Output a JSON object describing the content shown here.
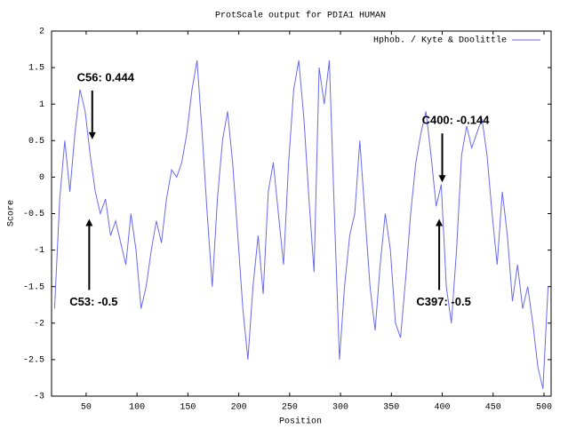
{
  "chart_data": {
    "type": "line",
    "title": "ProtScale output for PDIA1 HUMAN",
    "xlabel": "Position",
    "ylabel": "Score",
    "x": [
      19,
      24,
      29,
      34,
      39,
      44,
      49,
      54,
      59,
      64,
      69,
      74,
      79,
      84,
      89,
      94,
      99,
      104,
      109,
      114,
      119,
      124,
      129,
      134,
      139,
      144,
      149,
      154,
      159,
      164,
      169,
      174,
      179,
      184,
      189,
      194,
      199,
      204,
      209,
      214,
      219,
      224,
      229,
      234,
      239,
      244,
      249,
      254,
      259,
      264,
      269,
      274,
      279,
      284,
      289,
      294,
      299,
      304,
      309,
      314,
      319,
      324,
      329,
      334,
      339,
      344,
      349,
      354,
      359,
      364,
      369,
      374,
      379,
      384,
      389,
      394,
      399,
      404,
      409,
      414,
      419,
      424,
      429,
      434,
      439,
      444,
      449,
      454,
      459,
      464,
      469,
      474,
      479,
      484,
      489,
      494,
      499,
      504
    ],
    "series": [
      {
        "name": "Hphob. / Kyte & Doolittle",
        "color": "#6a6af0",
        "values": [
          -1.8,
          -0.3,
          0.5,
          -0.2,
          0.6,
          1.2,
          0.9,
          0.3,
          -0.2,
          -0.5,
          -0.3,
          -0.8,
          -0.6,
          -0.9,
          -1.2,
          -0.5,
          -1.0,
          -1.8,
          -1.5,
          -1.0,
          -0.6,
          -0.9,
          -0.3,
          0.1,
          0.0,
          0.2,
          0.6,
          1.2,
          1.6,
          0.6,
          -0.5,
          -1.5,
          -0.3,
          0.5,
          0.9,
          0.2,
          -0.8,
          -1.8,
          -2.5,
          -1.5,
          -0.8,
          -1.6,
          -0.2,
          0.2,
          -0.5,
          -1.2,
          0.2,
          1.2,
          1.6,
          0.8,
          -0.3,
          -1.3,
          1.5,
          1.0,
          1.6,
          -0.5,
          -2.5,
          -1.5,
          -0.8,
          -0.5,
          0.5,
          -0.5,
          -1.5,
          -2.1,
          -1.2,
          -0.5,
          -1.0,
          -2.0,
          -2.2,
          -1.4,
          -0.5,
          0.2,
          0.6,
          0.9,
          0.3,
          -0.4,
          -0.1,
          -1.5,
          -2.0,
          -1.0,
          0.3,
          0.7,
          0.4,
          0.6,
          0.8,
          0.3,
          -0.5,
          -1.2,
          -0.2,
          -0.8,
          -1.7,
          -1.2,
          -1.8,
          -1.5,
          -2.0,
          -2.6,
          -2.9,
          -1.5
        ]
      }
    ],
    "xlim": [
      16,
      507
    ],
    "ylim": [
      -3,
      2
    ],
    "xticks": [
      50,
      100,
      150,
      200,
      250,
      300,
      350,
      400,
      450,
      500
    ],
    "yticks": [
      2,
      1.5,
      1,
      0.5,
      0,
      -0.5,
      -1,
      -1.5,
      -2,
      -2.5,
      -3
    ],
    "legend": "upper right",
    "annotations": [
      {
        "label": "C56: 0.444",
        "x": 56,
        "y": 0.444
      },
      {
        "label": "C53: -0.5",
        "x": 53,
        "y": -0.5
      },
      {
        "label": "C400: -0.144",
        "x": 400,
        "y": -0.144
      },
      {
        "label": "C397: -0.5",
        "x": 397,
        "y": -0.5
      }
    ]
  }
}
